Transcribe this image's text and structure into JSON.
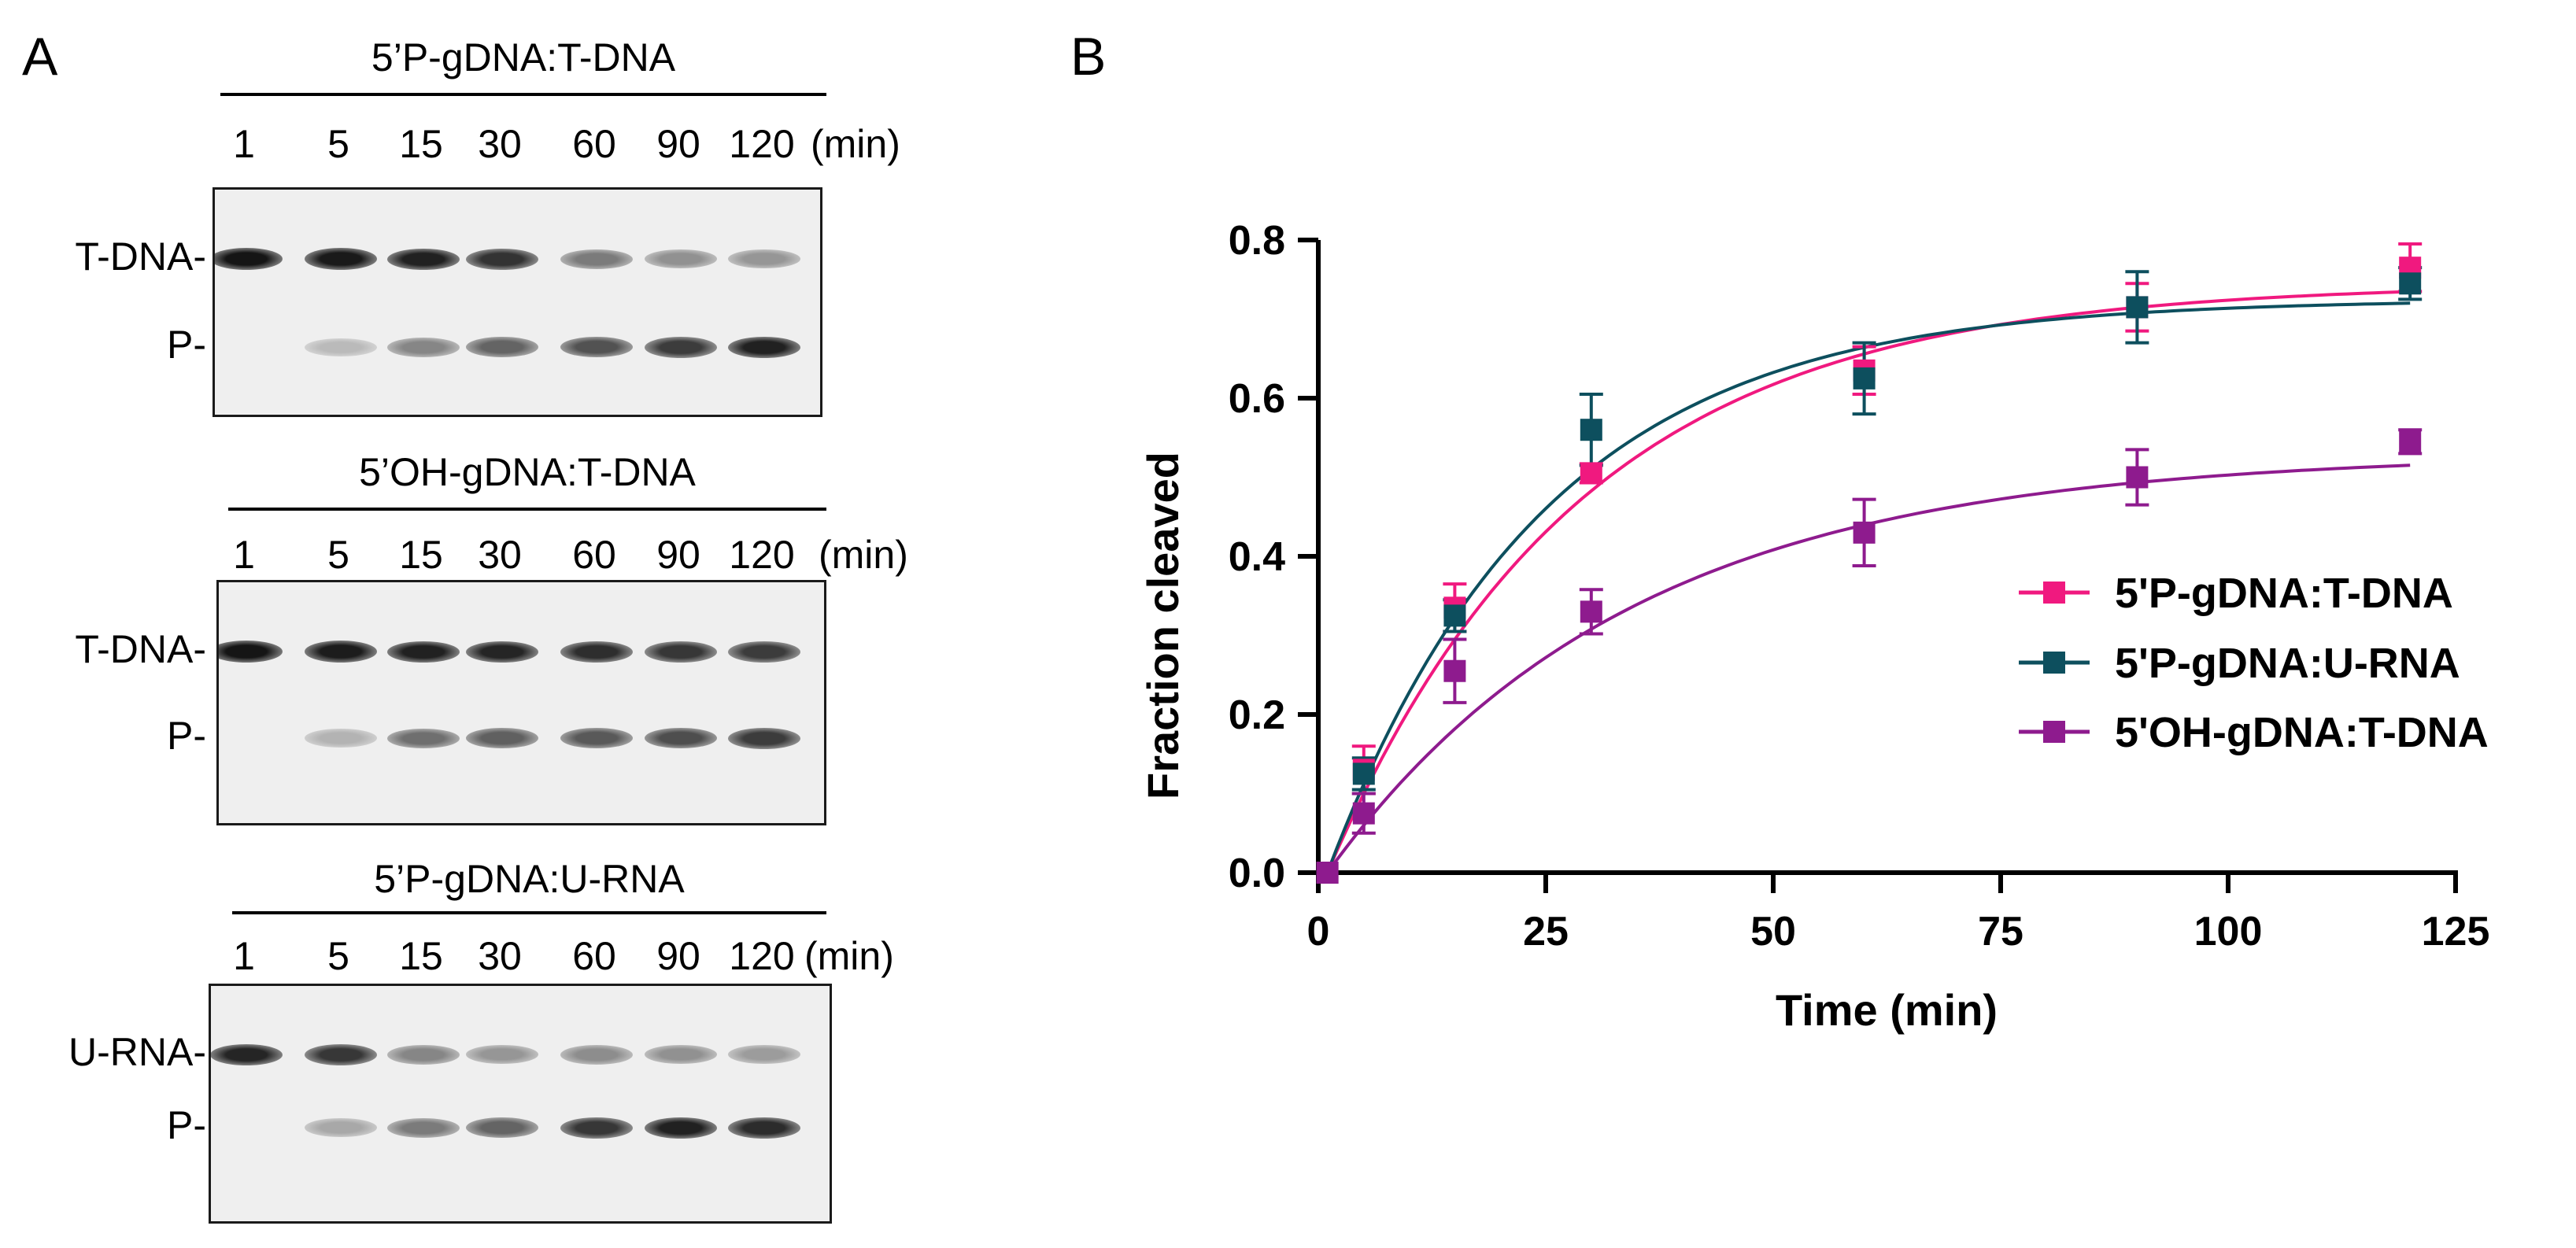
{
  "panel_a": {
    "letter": "A",
    "unit": "(min)",
    "gels": [
      {
        "title": "5’P-gDNA:T-DNA",
        "lanes": [
          "1",
          "5",
          "15",
          "30",
          "60",
          "90",
          "120"
        ],
        "substrate_label": "T-DNA-",
        "product_label": "P-",
        "substrate_intensity": [
          0.95,
          0.93,
          0.9,
          0.82,
          0.5,
          0.4,
          0.38
        ],
        "product_intensity": [
          0.0,
          0.22,
          0.45,
          0.6,
          0.68,
          0.78,
          0.9
        ]
      },
      {
        "title": "5’OH-gDNA:T-DNA",
        "lanes": [
          "1",
          "5",
          "15",
          "30",
          "60",
          "90",
          "120"
        ],
        "substrate_label": "T-DNA-",
        "product_label": "P-",
        "substrate_intensity": [
          0.95,
          0.92,
          0.9,
          0.88,
          0.84,
          0.8,
          0.78
        ],
        "product_intensity": [
          0.0,
          0.25,
          0.55,
          0.62,
          0.65,
          0.7,
          0.78
        ]
      },
      {
        "title": "5’P-gDNA:U-RNA",
        "lanes": [
          "1",
          "5",
          "15",
          "30",
          "60",
          "90",
          "120"
        ],
        "substrate_label": "U-RNA-",
        "product_label": "P-",
        "substrate_intensity": [
          0.88,
          0.8,
          0.45,
          0.38,
          0.42,
          0.4,
          0.35
        ],
        "product_intensity": [
          0.0,
          0.3,
          0.5,
          0.6,
          0.8,
          0.9,
          0.85
        ]
      }
    ]
  },
  "panel_b": {
    "letter": "B"
  },
  "chart_data": {
    "type": "scatter",
    "xlabel": "Time (min)",
    "ylabel": "Fraction cleaved",
    "xlim": [
      0,
      125
    ],
    "ylim": [
      0,
      0.8
    ],
    "xticks": [
      "0",
      "25",
      "50",
      "75",
      "100",
      "125"
    ],
    "yticks": [
      "0.0",
      "0.2",
      "0.4",
      "0.6",
      "0.8"
    ],
    "legend_position": "right",
    "series": [
      {
        "name": "5'P-gDNA:T-DNA",
        "color": "#f0197f",
        "x": [
          1,
          5,
          15,
          30,
          60,
          90,
          120
        ],
        "y": [
          0.0,
          0.13,
          0.335,
          0.505,
          0.635,
          0.715,
          0.765
        ],
        "err": [
          0.0,
          0.03,
          0.03,
          0.012,
          0.03,
          0.03,
          0.03
        ],
        "fit_plateau": 0.745,
        "fit_rate": 0.036
      },
      {
        "name": "5'P-gDNA:U-RNA",
        "color": "#0d4f5e",
        "x": [
          1,
          5,
          15,
          30,
          60,
          90,
          120
        ],
        "y": [
          0.0,
          0.125,
          0.325,
          0.56,
          0.625,
          0.715,
          0.745
        ],
        "err": [
          0.0,
          0.02,
          0.02,
          0.045,
          0.045,
          0.045,
          0.02
        ],
        "fit_plateau": 0.725,
        "fit_rate": 0.042
      },
      {
        "name": "5'OH-gDNA:T-DNA",
        "color": "#8e1b8e",
        "x": [
          1,
          5,
          15,
          30,
          60,
          90,
          120
        ],
        "y": [
          0.0,
          0.075,
          0.255,
          0.33,
          0.43,
          0.5,
          0.545
        ],
        "err": [
          0.0,
          0.025,
          0.04,
          0.028,
          0.042,
          0.035,
          0.015
        ],
        "fit_plateau": 0.53,
        "fit_rate": 0.03
      }
    ]
  }
}
